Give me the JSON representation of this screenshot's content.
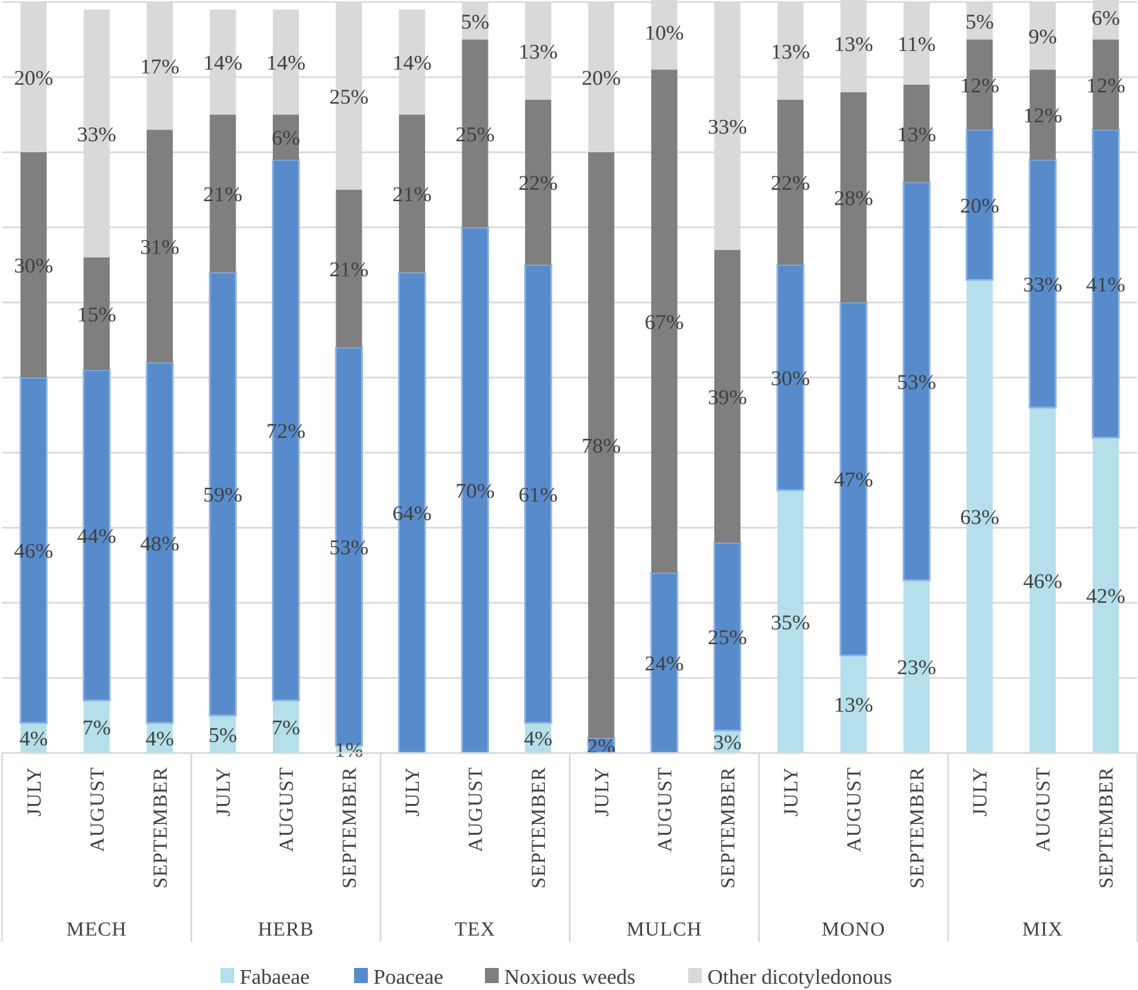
{
  "chart_data": {
    "type": "bar",
    "stacked": true,
    "percent_stacked": true,
    "ylim": [
      0,
      100
    ],
    "grid": true,
    "legend_placement": "bottom",
    "groups": [
      "MECH",
      "HERB",
      "TEX",
      "MULCH",
      "MONO",
      "MIX"
    ],
    "months": [
      "JULY",
      "AUGUST",
      "SEPTEMBER"
    ],
    "series": [
      {
        "name": "Fabaeae",
        "color": "#b5dfea",
        "values": [
          [
            4,
            7,
            4
          ],
          [
            5,
            7,
            1
          ],
          [
            0,
            0,
            4
          ],
          [
            0,
            0,
            3
          ],
          [
            35,
            13,
            23
          ],
          [
            63,
            46,
            42
          ]
        ]
      },
      {
        "name": "Poaceae",
        "color": "#588bcb",
        "values": [
          [
            46,
            44,
            48
          ],
          [
            59,
            72,
            53
          ],
          [
            64,
            70,
            61
          ],
          [
            2,
            24,
            25
          ],
          [
            30,
            47,
            53
          ],
          [
            20,
            33,
            41
          ]
        ]
      },
      {
        "name": "Noxious weeds",
        "color": "#7f7f7f",
        "values": [
          [
            30,
            15,
            31
          ],
          [
            21,
            6,
            21
          ],
          [
            21,
            25,
            22
          ],
          [
            78,
            67,
            39
          ],
          [
            22,
            28,
            13
          ],
          [
            12,
            12,
            12
          ]
        ]
      },
      {
        "name": "Other dicotyledonous",
        "color": "#d9d9d9",
        "values": [
          [
            20,
            33,
            17
          ],
          [
            14,
            14,
            25
          ],
          [
            14,
            5,
            13
          ],
          [
            20,
            10,
            33
          ],
          [
            13,
            13,
            11
          ],
          [
            5,
            9,
            6
          ]
        ]
      }
    ],
    "colors": {
      "gridline": "#d9d9d9",
      "text": "#404040",
      "poaceae_border": "#8db4e2"
    }
  }
}
